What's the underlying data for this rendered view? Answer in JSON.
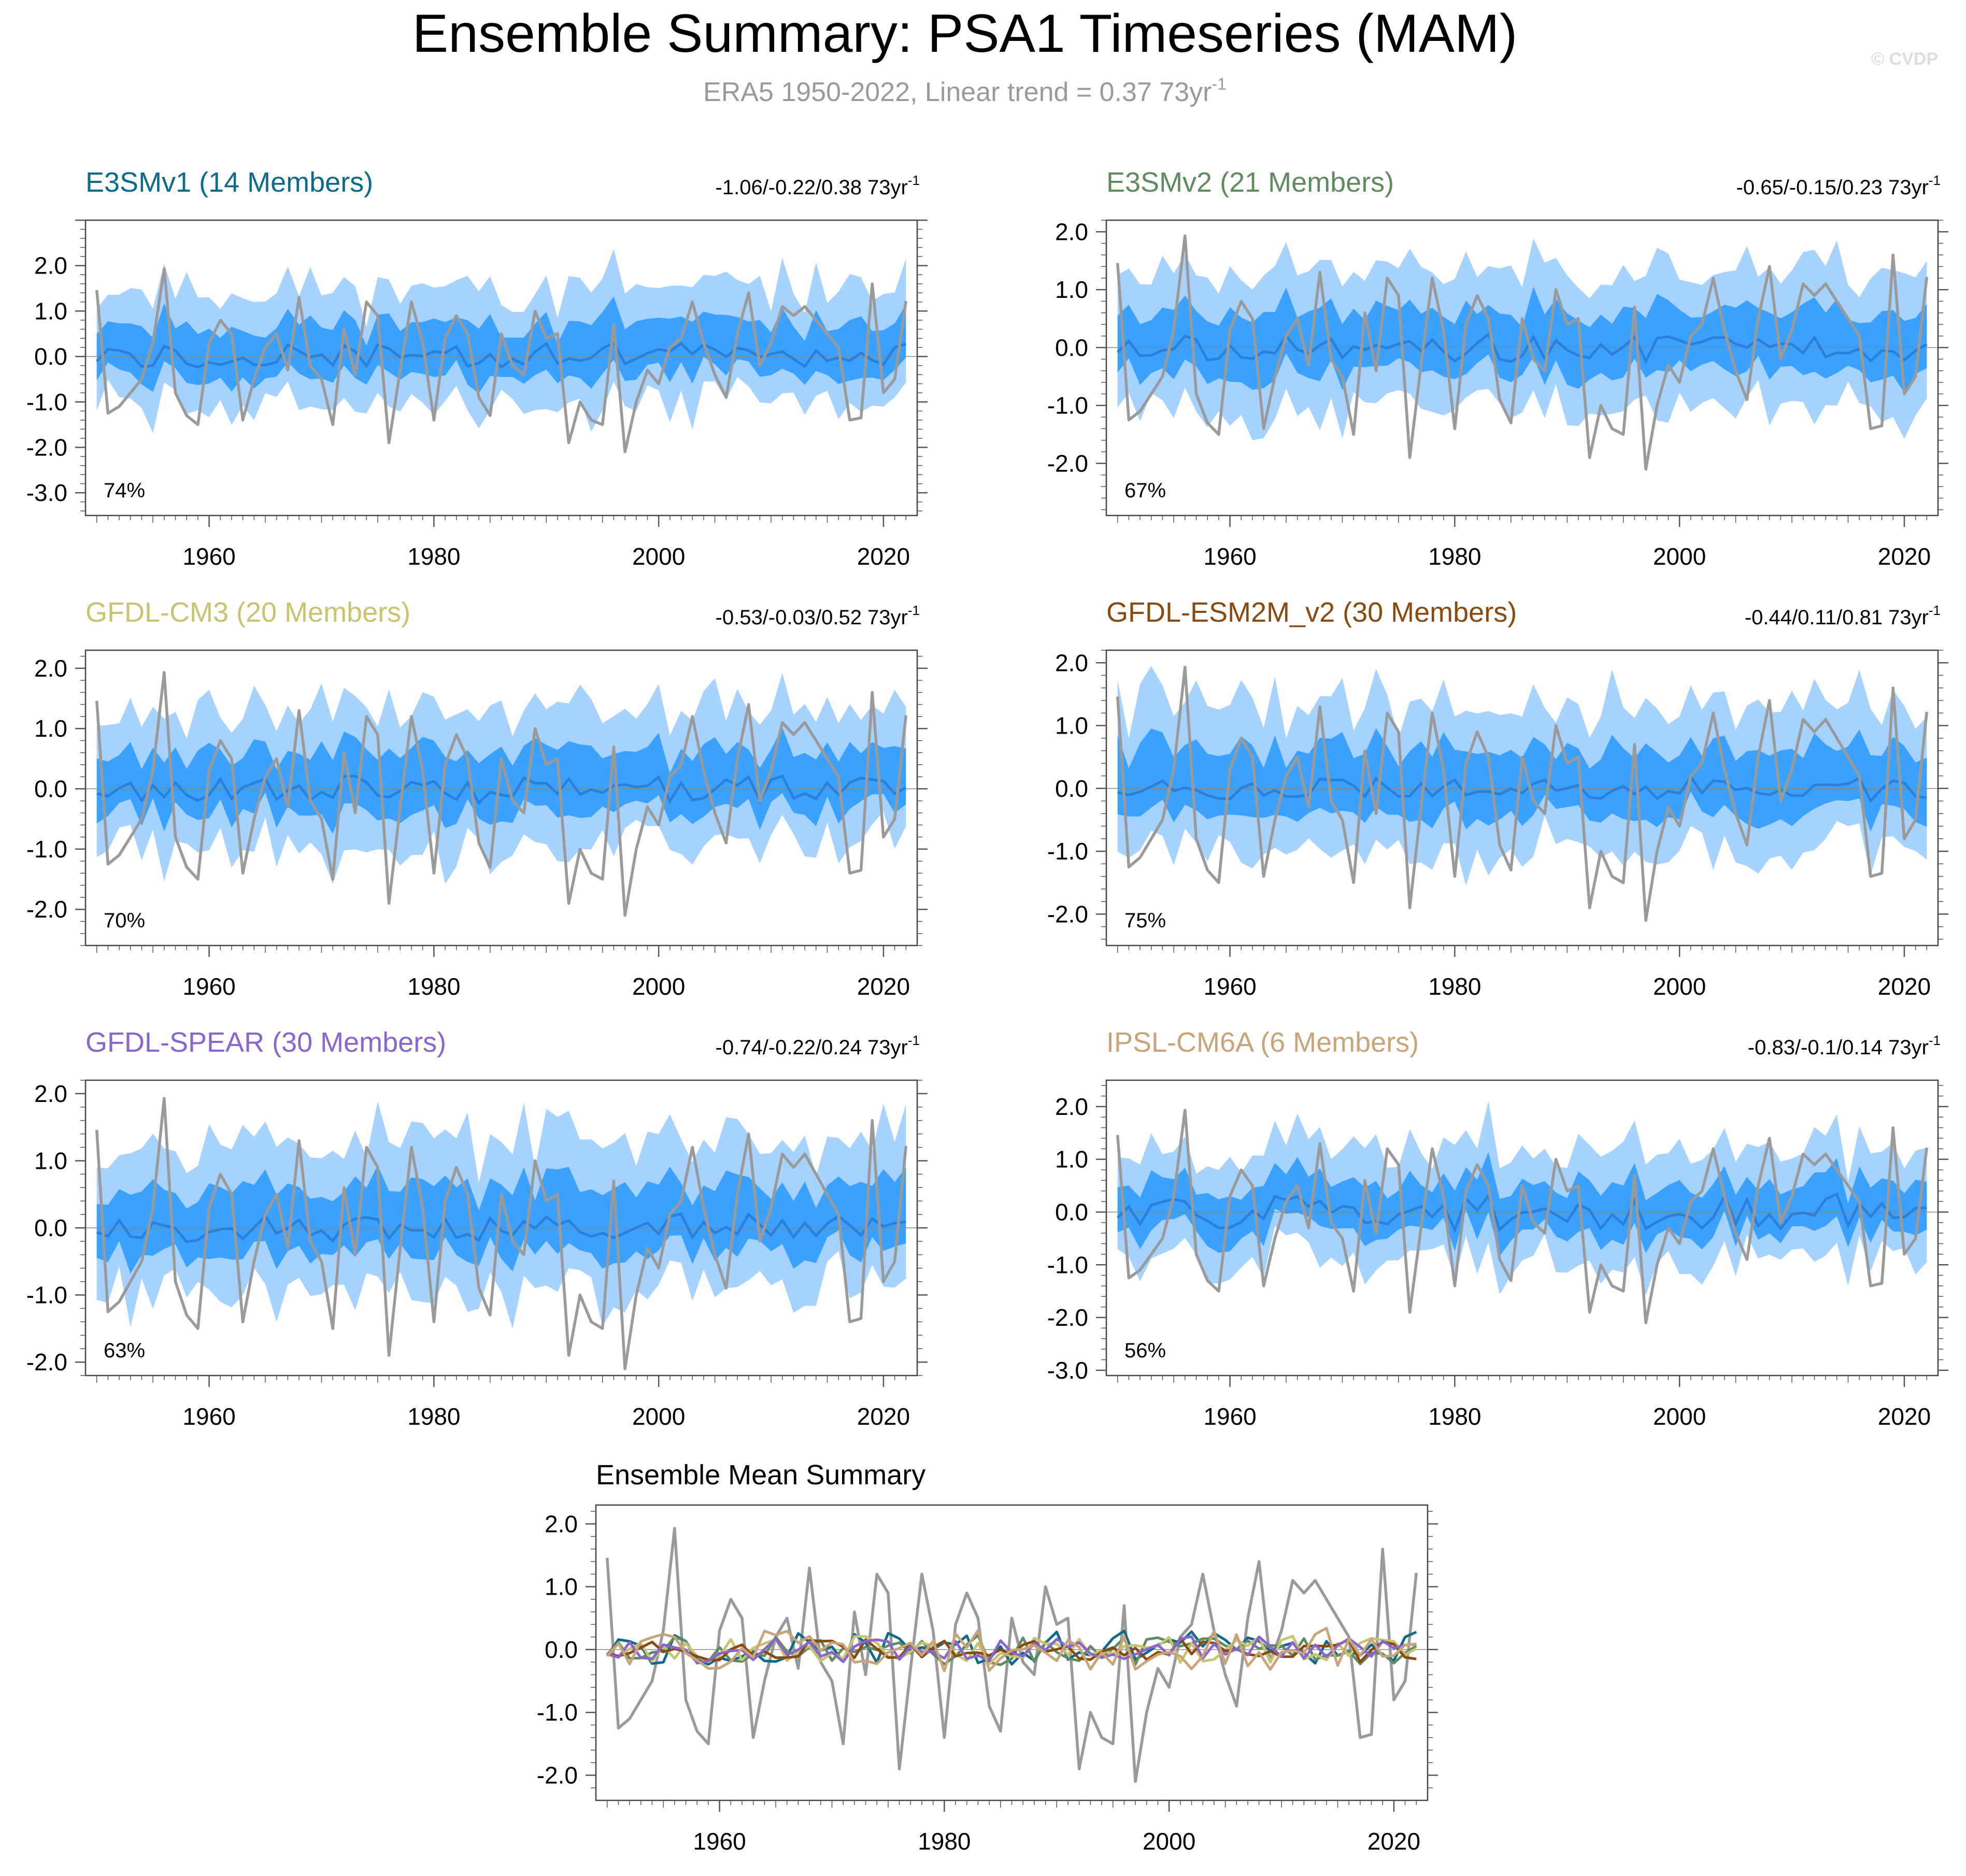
{
  "header": {
    "title": "Ensemble Summary: PSA1 Timeseries (MAM)",
    "subtitle_prefix": "ERA5 1950-2022, Linear trend = 0.37 73yr",
    "subtitle_sup": "-1",
    "watermark": "© CVDP"
  },
  "colors": {
    "outer_band": "#a6d2ff",
    "inner_band": "#3ba1ff",
    "ens_mean": "#2b7fd6",
    "obs": "#9a9a9a",
    "axis": "#555555",
    "zero_line": "#888888"
  },
  "obs_series": {
    "name": "ERA5",
    "x_start": 1950,
    "values": [
      1.46,
      -1.25,
      -1.1,
      -0.8,
      -0.5,
      0.3,
      1.93,
      -0.8,
      -1.3,
      -1.5,
      0.3,
      0.8,
      0.5,
      -1.4,
      -0.5,
      0.2,
      0.5,
      -0.3,
      1.3,
      -0.2,
      -0.5,
      -1.5,
      0.6,
      -0.4,
      1.2,
      0.9,
      -1.9,
      -0.3,
      1.2,
      0.3,
      -1.4,
      0.4,
      0.9,
      0.5,
      -0.9,
      -1.3,
      0.5,
      -0.2,
      -0.4,
      1.0,
      0.4,
      0.5,
      -1.9,
      -1.0,
      -1.4,
      -1.5,
      0.7,
      -2.1,
      -1.0,
      -0.3,
      -0.6,
      0.2,
      0.4,
      1.2,
      0.3,
      -0.4,
      -0.9,
      0.5,
      1.4,
      -0.2,
      0.3,
      1.1,
      0.9,
      1.1,
      0.8,
      0.5,
      0.2,
      -1.4,
      -1.35,
      1.6,
      -0.8,
      -0.5,
      1.22
    ]
  },
  "panels": [
    {
      "model": "E3SMv1",
      "title": "E3SMv1 (14 Members)",
      "color": "#0e6a8a",
      "trend_text": "-1.06/-0.22/0.38 73yr",
      "trend_sup": "-1",
      "pct": "74%",
      "ylim": [
        -3.5,
        3.0
      ],
      "yticks": [
        2.0,
        1.0,
        0.0,
        -1.0,
        -2.0,
        -3.0
      ],
      "ytick_labels": [
        "2.0",
        "1.0",
        "0.0",
        "-1.0",
        "-2.0",
        "-3.0"
      ],
      "xticks": [
        1960,
        1980,
        2000,
        2020
      ],
      "xtick_labels": [
        "1960",
        "1980",
        "2000",
        "2020"
      ],
      "seed": 11,
      "spread": 1.3,
      "mean_amp": 0.28
    },
    {
      "model": "E3SMv2",
      "title": "E3SMv2 (21 Members)",
      "color": "#5e8c5e",
      "trend_text": "-0.65/-0.15/0.23 73yr",
      "trend_sup": "-1",
      "pct": "67%",
      "ylim": [
        -2.9,
        2.2
      ],
      "yticks": [
        2.0,
        1.0,
        0.0,
        -1.0,
        -2.0
      ],
      "ytick_labels": [
        "2.0",
        "1.0",
        "0.0",
        "-1.0",
        "-2.0"
      ],
      "xticks": [
        1960,
        1980,
        2000,
        2020
      ],
      "xtick_labels": [
        "1960",
        "1980",
        "2000",
        "2020"
      ],
      "seed": 23,
      "spread": 1.2,
      "mean_amp": 0.22
    },
    {
      "model": "GFDL-CM3",
      "title": "GFDL-CM3 (20 Members)",
      "color": "#c9c26e",
      "trend_text": "-0.53/-0.03/0.52 73yr",
      "trend_sup": "-1",
      "pct": "70%",
      "ylim": [
        -2.6,
        2.3
      ],
      "yticks": [
        2.0,
        1.0,
        0.0,
        -1.0,
        -2.0
      ],
      "ytick_labels": [
        "2.0",
        "1.0",
        "0.0",
        "-1.0",
        "-2.0"
      ],
      "xticks": [
        1960,
        1980,
        2000,
        2020
      ],
      "xtick_labels": [
        "1960",
        "1980",
        "2000",
        "2020"
      ],
      "seed": 37,
      "spread": 1.15,
      "mean_amp": 0.22
    },
    {
      "model": "GFDL-ESM2M_v2",
      "title": "GFDL-ESM2M_v2 (30 Members)",
      "color": "#8a4a0e",
      "trend_text": "-0.44/0.11/0.81 73yr",
      "trend_sup": "-1",
      "pct": "75%",
      "ylim": [
        -2.5,
        2.2
      ],
      "yticks": [
        2.0,
        1.0,
        0.0,
        -1.0,
        -2.0
      ],
      "ytick_labels": [
        "2.0",
        "1.0",
        "0.0",
        "-1.0",
        "-2.0"
      ],
      "xticks": [
        1960,
        1980,
        2000,
        2020
      ],
      "xtick_labels": [
        "1960",
        "1980",
        "2000",
        "2020"
      ],
      "seed": 41,
      "spread": 1.15,
      "mean_amp": 0.18
    },
    {
      "model": "GFDL-SPEAR",
      "title": "GFDL-SPEAR (30 Members)",
      "color": "#8a64cf",
      "trend_text": "-0.74/-0.22/0.24 73yr",
      "trend_sup": "-1",
      "pct": "63%",
      "ylim": [
        -2.2,
        2.2
      ],
      "yticks": [
        2.0,
        1.0,
        0.0,
        -1.0,
        -2.0
      ],
      "ytick_labels": [
        "2.0",
        "1.0",
        "0.0",
        "-1.0",
        "-2.0"
      ],
      "xticks": [
        1960,
        1980,
        2000,
        2020
      ],
      "xtick_labels": [
        "1960",
        "1980",
        "2000",
        "2020"
      ],
      "seed": 53,
      "spread": 1.15,
      "mean_amp": 0.2
    },
    {
      "model": "IPSL-CM6A",
      "title": "IPSL-CM6A (6 Members)",
      "color": "#c9a478",
      "trend_text": "-0.83/-0.1/0.14 73yr",
      "trend_sup": "-1",
      "pct": "56%",
      "ylim": [
        -3.1,
        2.5
      ],
      "yticks": [
        2.0,
        1.0,
        0.0,
        -1.0,
        -2.0,
        -3.0
      ],
      "ytick_labels": [
        "2.0",
        "1.0",
        "0.0",
        "-1.0",
        "-2.0",
        "-3.0"
      ],
      "xticks": [
        1960,
        1980,
        2000,
        2020
      ],
      "xtick_labels": [
        "1960",
        "1980",
        "2000",
        "2020"
      ],
      "seed": 67,
      "spread": 1.05,
      "mean_amp": 0.32
    }
  ],
  "chart_data": [
    {
      "type": "area",
      "title": "Ensemble Summary: PSA1 Timeseries (MAM)",
      "subtitle": "ERA5 1950-2022, Linear trend = 0.37 73yr-1",
      "x_range": [
        1950,
        2022
      ],
      "description_note": "Six model panels each show ensemble spread (outer light band, inner dark band), ensemble mean line (blue) and ERA5 observations (gray).",
      "series_names": [
        "ERA5",
        "E3SMv1",
        "E3SMv2",
        "GFDL-CM3",
        "GFDL-ESM2M_v2",
        "GFDL-SPEAR",
        "IPSL-CM6A"
      ]
    },
    {
      "type": "line",
      "title": "Ensemble Mean Summary",
      "ylim": [
        -2.4,
        2.3
      ],
      "yticks": [
        2.0,
        1.0,
        0.0,
        -1.0,
        -2.0
      ],
      "ytick_labels": [
        "2.0",
        "1.0",
        "0.0",
        "-1.0",
        "-2.0"
      ],
      "xticks": [
        1960,
        1980,
        2000,
        2020
      ],
      "xtick_labels": [
        "1960",
        "1980",
        "2000",
        "2020"
      ],
      "series": [
        {
          "name": "ERA5",
          "color": "#9a9a9a"
        },
        {
          "name": "E3SMv1",
          "color": "#0e6a8a"
        },
        {
          "name": "E3SMv2",
          "color": "#5e8c5e"
        },
        {
          "name": "GFDL-CM3",
          "color": "#c9c26e"
        },
        {
          "name": "GFDL-ESM2M_v2",
          "color": "#8a4a0e"
        },
        {
          "name": "GFDL-SPEAR",
          "color": "#8a64cf"
        },
        {
          "name": "IPSL-CM6A",
          "color": "#c9a478"
        }
      ]
    }
  ]
}
